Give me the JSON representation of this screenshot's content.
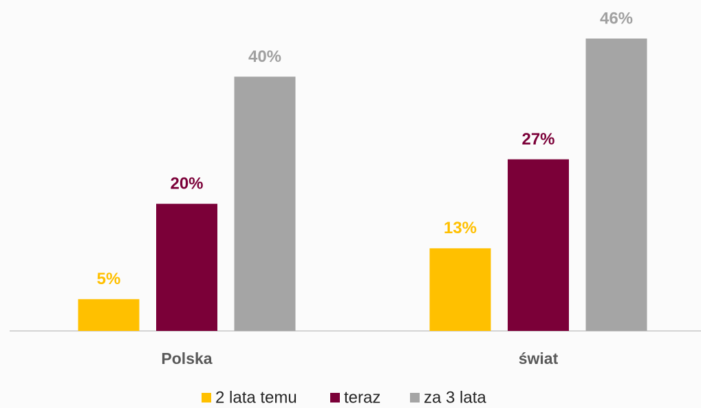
{
  "chart_data": {
    "type": "bar",
    "categories": [
      "Polska",
      "świat"
    ],
    "series": [
      {
        "name": "2 lata temu",
        "color": "#ffc000",
        "values": [
          5,
          13
        ],
        "value_labels": [
          "5%",
          "13%"
        ]
      },
      {
        "name": "teraz",
        "color": "#7b0038",
        "values": [
          20,
          27
        ],
        "value_labels": [
          "20%",
          "27%"
        ]
      },
      {
        "name": "za 3 lata",
        "color": "#a5a5a5",
        "values": [
          40,
          46
        ],
        "value_labels": [
          "40%",
          "46%"
        ]
      }
    ]
  }
}
